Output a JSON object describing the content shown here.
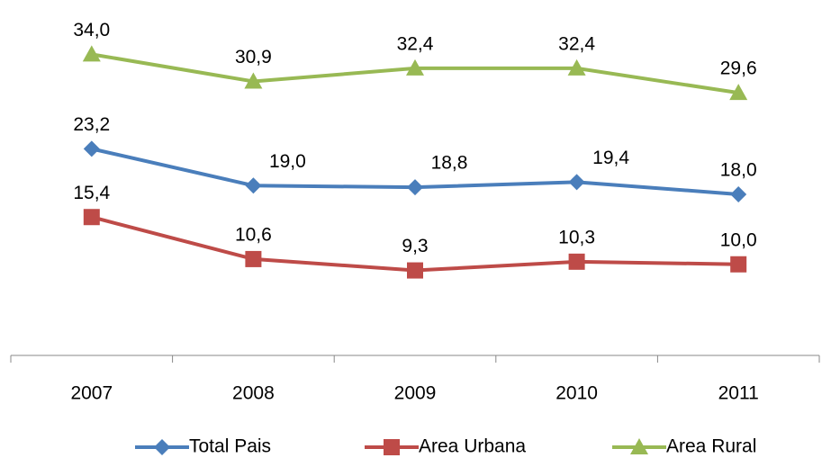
{
  "chart_data": {
    "type": "line",
    "categories": [
      "2007",
      "2008",
      "2009",
      "2010",
      "2011"
    ],
    "ylim": [
      0,
      40
    ],
    "legend": "bottom",
    "series": [
      {
        "name": "Total Pais",
        "color": "#4a7ebb",
        "marker": "diamond",
        "values": [
          23.2,
          19.0,
          18.8,
          19.4,
          18.0
        ],
        "value_labels": [
          "23,2",
          "19,0",
          "18,8",
          "19,4",
          "18,0"
        ]
      },
      {
        "name": "Area Urbana",
        "color": "#be4b48",
        "marker": "square",
        "values": [
          15.4,
          10.6,
          9.3,
          10.3,
          10.0
        ],
        "value_labels": [
          "15,4",
          "10,6",
          "9,3",
          "10,3",
          "10,0"
        ]
      },
      {
        "name": "Area Rural",
        "color": "#98b954",
        "marker": "triangle",
        "values": [
          34.0,
          30.9,
          32.4,
          32.4,
          29.6
        ],
        "value_labels": [
          "34,0",
          "30,9",
          "32,4",
          "32,4",
          "29,6"
        ]
      }
    ]
  }
}
